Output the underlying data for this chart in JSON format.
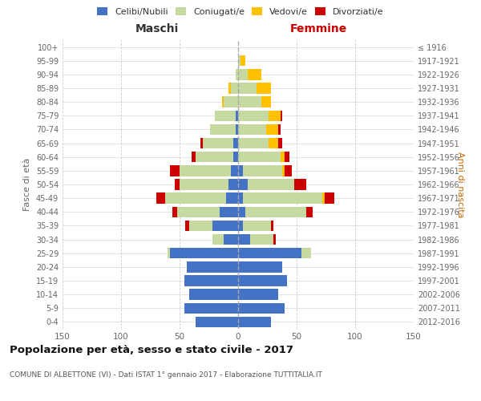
{
  "age_groups": [
    "100+",
    "95-99",
    "90-94",
    "85-89",
    "80-84",
    "75-79",
    "70-74",
    "65-69",
    "60-64",
    "55-59",
    "50-54",
    "45-49",
    "40-44",
    "35-39",
    "30-34",
    "25-29",
    "20-24",
    "15-19",
    "10-14",
    "5-9",
    "0-4"
  ],
  "birth_years": [
    "≤ 1916",
    "1917-1921",
    "1922-1926",
    "1927-1931",
    "1932-1936",
    "1937-1941",
    "1942-1946",
    "1947-1951",
    "1952-1956",
    "1957-1961",
    "1962-1966",
    "1967-1971",
    "1972-1976",
    "1977-1981",
    "1982-1986",
    "1987-1991",
    "1992-1996",
    "1997-2001",
    "2002-2006",
    "2007-2011",
    "2012-2016"
  ],
  "maschi_celibi": [
    0,
    0,
    0,
    0,
    0,
    2,
    2,
    4,
    4,
    6,
    8,
    10,
    16,
    22,
    12,
    58,
    44,
    46,
    42,
    46,
    36
  ],
  "maschi_coniugati": [
    0,
    0,
    2,
    6,
    12,
    18,
    22,
    26,
    32,
    44,
    42,
    52,
    36,
    20,
    10,
    2,
    0,
    0,
    0,
    0,
    0
  ],
  "maschi_vedovi": [
    0,
    0,
    0,
    2,
    2,
    0,
    0,
    0,
    0,
    0,
    0,
    0,
    0,
    0,
    0,
    0,
    0,
    0,
    0,
    0,
    0
  ],
  "maschi_divorziati": [
    0,
    0,
    0,
    0,
    0,
    0,
    0,
    2,
    4,
    8,
    4,
    8,
    4,
    3,
    0,
    0,
    0,
    0,
    0,
    0,
    0
  ],
  "femmine_celibi": [
    0,
    0,
    0,
    0,
    0,
    0,
    0,
    0,
    0,
    4,
    8,
    4,
    6,
    4,
    10,
    54,
    38,
    42,
    34,
    40,
    28
  ],
  "femmine_coniugati": [
    0,
    2,
    8,
    16,
    20,
    26,
    24,
    26,
    36,
    34,
    40,
    68,
    52,
    24,
    20,
    8,
    0,
    0,
    0,
    0,
    0
  ],
  "femmine_vedovi": [
    0,
    4,
    12,
    12,
    8,
    10,
    10,
    8,
    4,
    2,
    0,
    2,
    0,
    0,
    0,
    0,
    0,
    0,
    0,
    0,
    0
  ],
  "femmine_divorziati": [
    0,
    0,
    0,
    0,
    0,
    2,
    2,
    4,
    4,
    6,
    10,
    8,
    6,
    2,
    2,
    0,
    0,
    0,
    0,
    0,
    0
  ],
  "colors": {
    "celibi": "#4472c4",
    "coniugati": "#c5d9a0",
    "vedovi": "#ffc000",
    "divorziati": "#cc0000"
  },
  "title": "Popolazione per età, sesso e stato civile - 2017",
  "subtitle": "COMUNE DI ALBETTONE (VI) - Dati ISTAT 1° gennaio 2017 - Elaborazione TUTTITALIA.IT",
  "label_maschi": "Maschi",
  "label_femmine": "Femmine",
  "ylabel_left": "Fasce di età",
  "ylabel_right": "Anni di nascita",
  "xlim": 150,
  "background_color": "#ffffff",
  "grid_color": "#cccccc",
  "legend_labels": [
    "Celibi/Nubili",
    "Coniugati/e",
    "Vedovi/e",
    "Divorziati/e"
  ]
}
